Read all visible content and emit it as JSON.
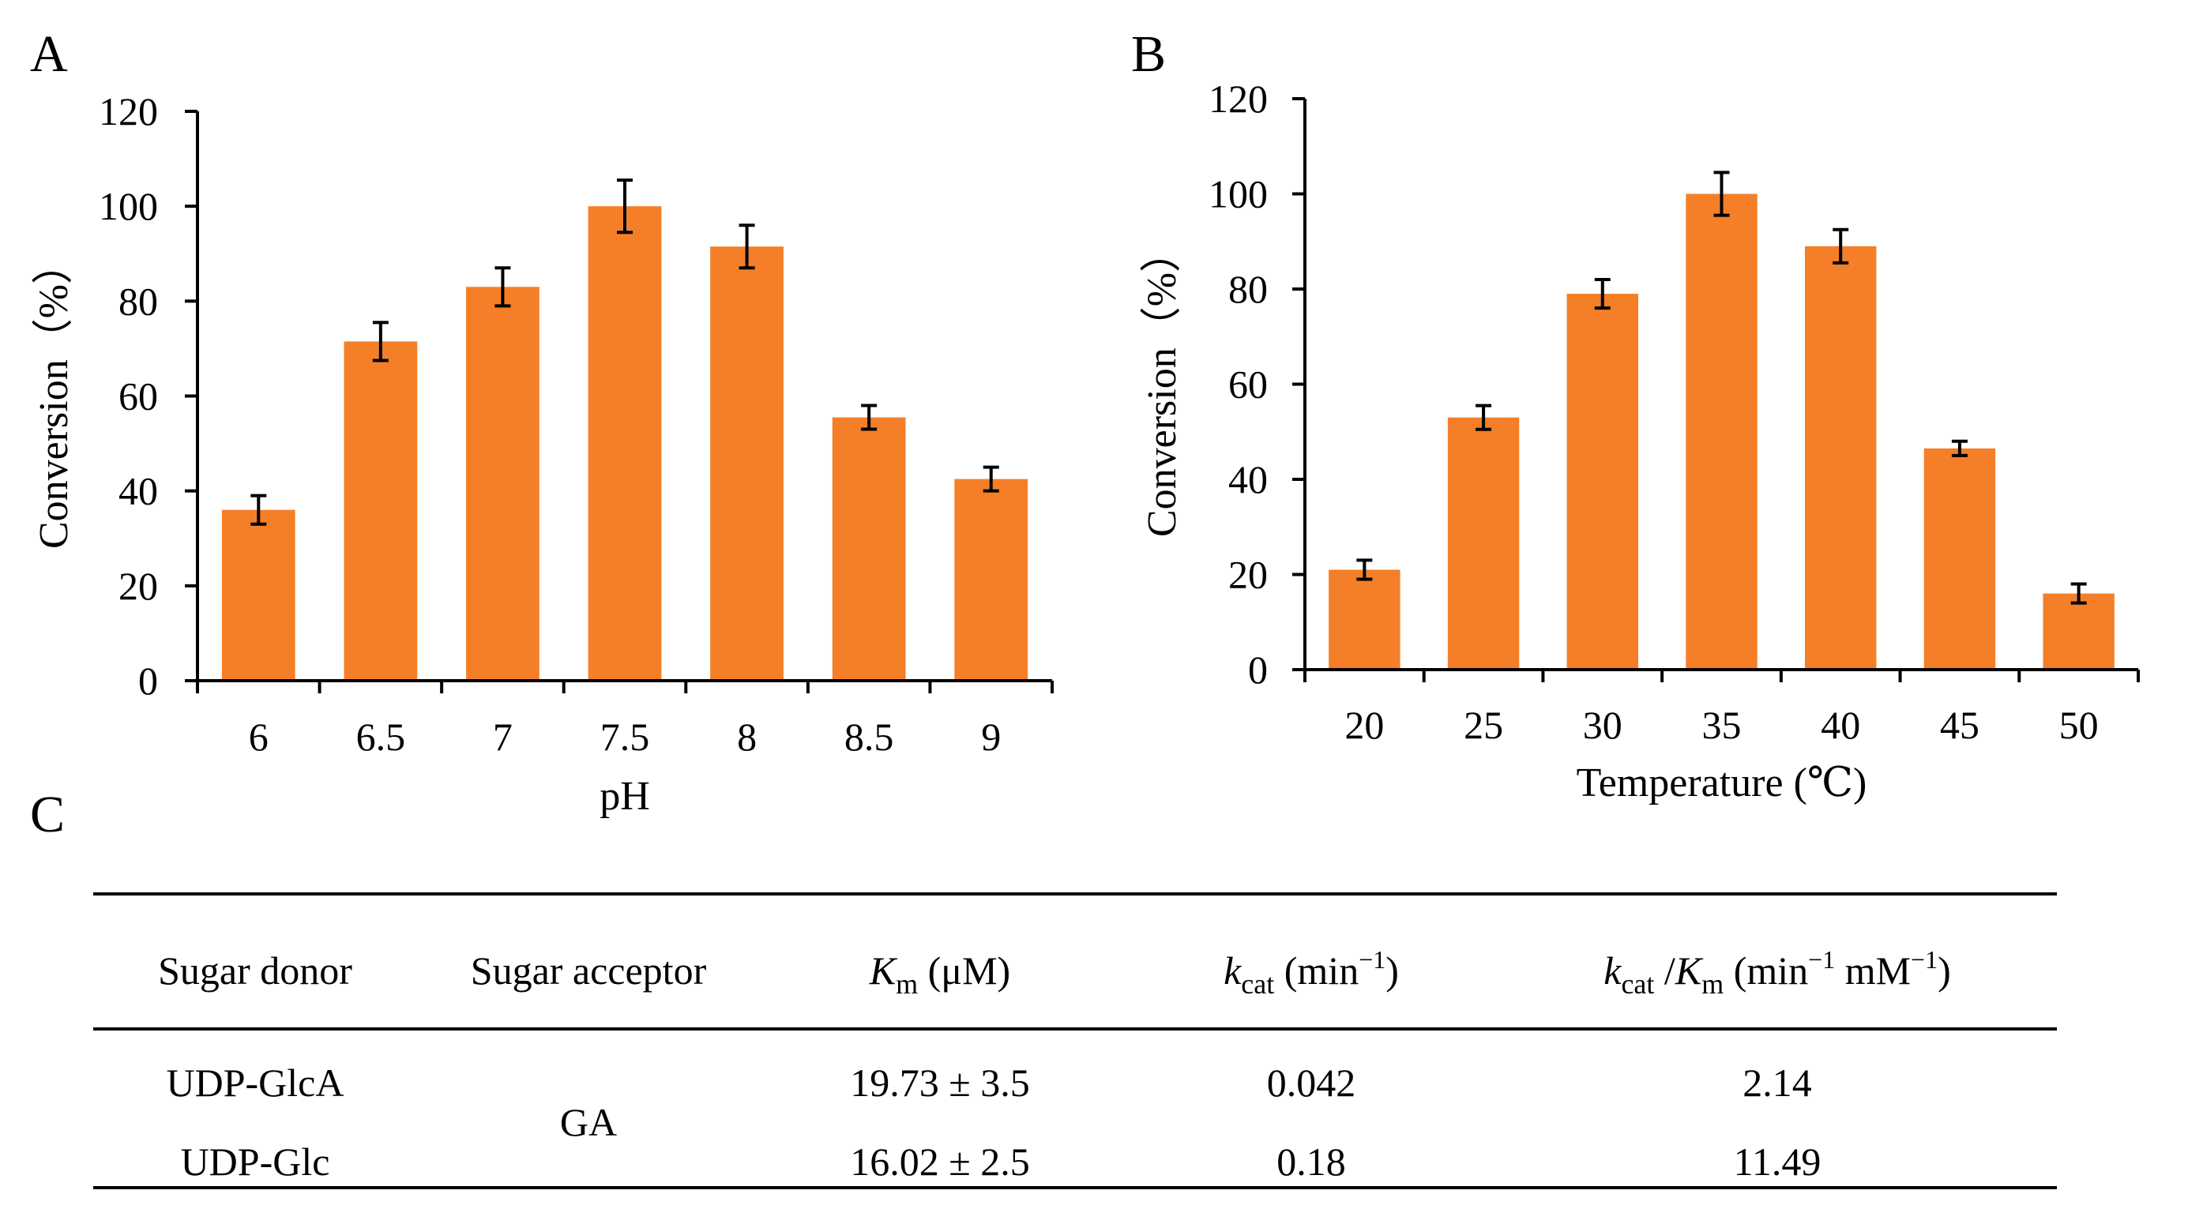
{
  "panels": {
    "a": "A",
    "b": "B",
    "c": "C"
  },
  "chart_data": [
    {
      "type": "bar",
      "panel": "A",
      "title": "",
      "xlabel": "pH",
      "ylabel": "Conversion（%）",
      "categories": [
        "6",
        "6.5",
        "7",
        "7.5",
        "8",
        "8.5",
        "9"
      ],
      "values": [
        36,
        71.5,
        83,
        100,
        91.5,
        55.5,
        42.5
      ],
      "errors": [
        3,
        4,
        4,
        5.5,
        4.5,
        2.5,
        2.5
      ],
      "ylim": [
        0,
        120
      ],
      "yticks": [
        "0",
        "20",
        "40",
        "60",
        "80",
        "100",
        "120"
      ],
      "bar_color": "#F47F28",
      "grid": false
    },
    {
      "type": "bar",
      "panel": "B",
      "title": "",
      "xlabel": "Temperature (℃)",
      "ylabel": "Conversion（%）",
      "categories": [
        "20",
        "25",
        "30",
        "35",
        "40",
        "45",
        "50"
      ],
      "values": [
        21,
        53,
        79,
        100,
        89,
        46.5,
        16
      ],
      "errors": [
        2,
        2.5,
        3,
        4.5,
        3.5,
        1.5,
        2
      ],
      "ylim": [
        0,
        120
      ],
      "yticks": [
        "0",
        "20",
        "40",
        "60",
        "80",
        "100",
        "120"
      ],
      "bar_color": "#F47F28",
      "grid": false
    },
    {
      "type": "table",
      "panel": "C",
      "headers": {
        "donor": "Sugar donor",
        "acceptor": "Sugar acceptor",
        "km_sym": "K",
        "km_sub": "m",
        "km_unit": " (μM)",
        "kcat_sym": "k",
        "kcat_sub": "cat",
        "kcat_unit": " (min",
        "kcat_sup": "−1",
        "kcat_close": ")",
        "eff_k": "k",
        "eff_ksub": "cat",
        "eff_slash": " /",
        "eff_K": "K",
        "eff_Ksub": "m",
        "eff_unit1": " (min",
        "eff_sup1": "−1",
        "eff_unit2": " mM",
        "eff_sup2": "−1",
        "eff_close": ")"
      },
      "acceptor": "GA",
      "rows": [
        {
          "donor": "UDP-GlcA",
          "km": "19.73 ± 3.5",
          "kcat": "0.042",
          "eff": "2.14"
        },
        {
          "donor": "UDP-Glc",
          "km": "16.02 ± 2.5",
          "kcat": "0.18",
          "eff": "11.49"
        }
      ]
    }
  ]
}
